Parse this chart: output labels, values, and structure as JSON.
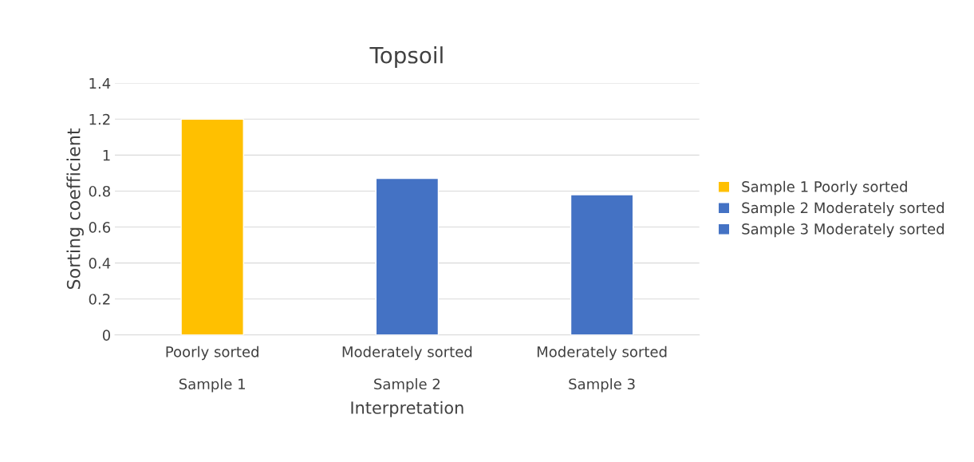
{
  "chart_data": {
    "type": "bar",
    "title": "Topsoil",
    "xlabel": "Interpretation",
    "ylabel": "Sorting coefficient",
    "categories": [
      "Poorly sorted\n\nSample 1",
      "Moderately sorted\n\nSample 2",
      "Moderately sorted\n\nSample 3"
    ],
    "series": [
      {
        "name": "Sample 1 Poorly sorted",
        "color": "#ffc000",
        "values": [
          1.2,
          null,
          null
        ]
      },
      {
        "name": "Sample 2 Moderately sorted",
        "color": "#4472c4",
        "values": [
          null,
          0.87,
          null
        ]
      },
      {
        "name": "Sample 3 Moderately sorted",
        "color": "#4472c4",
        "values": [
          null,
          null,
          0.78
        ]
      }
    ],
    "ylim": [
      0,
      1.4
    ],
    "yticks": [
      0,
      0.2,
      0.4,
      0.6,
      0.8,
      1,
      1.2,
      1.4
    ],
    "grid": "y",
    "legend": "right"
  }
}
